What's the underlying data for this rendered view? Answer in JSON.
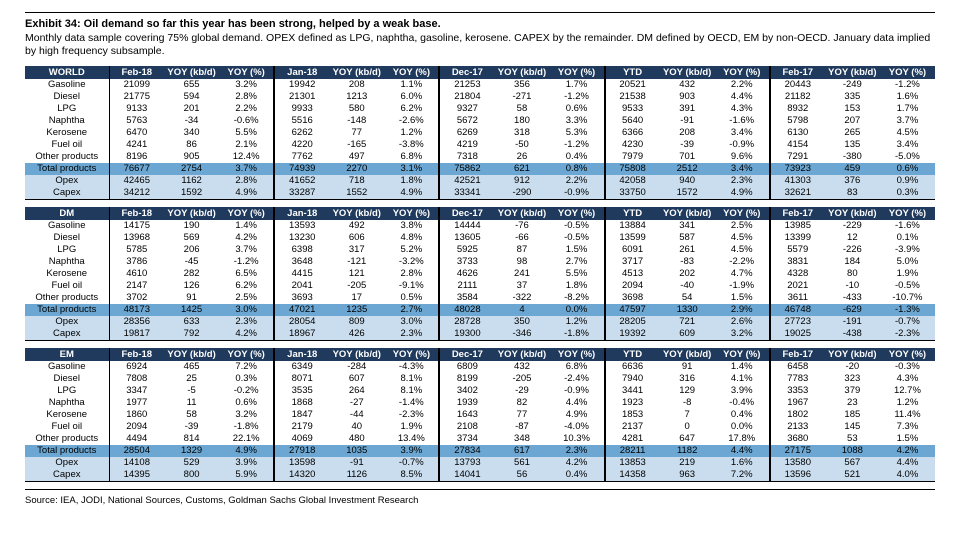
{
  "page": {
    "title": "Exhibit 34: Oil demand so far this year has been strong, helped by a weak base.",
    "subtitle": "Monthly data sample covering 75% global demand. OPEX defined as LPG, naphtha, gasoline, kerosene. CAPEX by the remainder. DM defined by OECD, EM by non-OECD. January data implied by high frequency subsample.",
    "source": "Source: IEA, JODI, National Sources, Customs, Goldman Sachs Global Investment Research"
  },
  "colors": {
    "header_bg": "#1f3a5c",
    "header_text": "#ffffff",
    "total_row_bg": "#6ba7d2",
    "subtotal_row_bg": "#c9ddee",
    "border": "#000000"
  },
  "columns": [
    "Feb-18",
    "YOY (kb/d)",
    "YOY (%)",
    "Jan-18",
    "YOY (kb/d)",
    "YOY (%)",
    "Dec-17",
    "YOY (kb/d)",
    "YOY (%)",
    "YTD",
    "YOY (kb/d)",
    "YOY (%)",
    "Feb-17",
    "YOY (kb/d)",
    "YOY (%)"
  ],
  "tables": [
    {
      "name": "WORLD",
      "rows": [
        {
          "label": "Gasoline",
          "type": "normal",
          "values": [
            "21099",
            "655",
            "3.2%",
            "19942",
            "208",
            "1.1%",
            "21253",
            "356",
            "1.7%",
            "20521",
            "432",
            "2.2%",
            "20443",
            "-249",
            "-1.2%"
          ]
        },
        {
          "label": "Diesel",
          "type": "normal",
          "values": [
            "21775",
            "594",
            "2.8%",
            "21301",
            "1213",
            "6.0%",
            "21804",
            "-271",
            "-1.2%",
            "21538",
            "903",
            "4.4%",
            "21182",
            "335",
            "1.6%"
          ]
        },
        {
          "label": "LPG",
          "type": "normal",
          "values": [
            "9133",
            "201",
            "2.2%",
            "9933",
            "580",
            "6.2%",
            "9327",
            "58",
            "0.6%",
            "9533",
            "391",
            "4.3%",
            "8932",
            "153",
            "1.7%"
          ]
        },
        {
          "label": "Naphtha",
          "type": "normal",
          "values": [
            "5763",
            "-34",
            "-0.6%",
            "5516",
            "-148",
            "-2.6%",
            "5672",
            "180",
            "3.3%",
            "5640",
            "-91",
            "-1.6%",
            "5798",
            "207",
            "3.7%"
          ]
        },
        {
          "label": "Kerosene",
          "type": "normal",
          "values": [
            "6470",
            "340",
            "5.5%",
            "6262",
            "77",
            "1.2%",
            "6269",
            "318",
            "5.3%",
            "6366",
            "208",
            "3.4%",
            "6130",
            "265",
            "4.5%"
          ]
        },
        {
          "label": "Fuel oil",
          "type": "normal",
          "values": [
            "4241",
            "86",
            "2.1%",
            "4220",
            "-165",
            "-3.8%",
            "4219",
            "-50",
            "-1.2%",
            "4230",
            "-39",
            "-0.9%",
            "4154",
            "135",
            "3.4%"
          ]
        },
        {
          "label": "Other products",
          "type": "normal",
          "values": [
            "8196",
            "905",
            "12.4%",
            "7762",
            "497",
            "6.8%",
            "7318",
            "26",
            "0.4%",
            "7979",
            "701",
            "9.6%",
            "7291",
            "-380",
            "-5.0%"
          ]
        },
        {
          "label": "Total products",
          "type": "total",
          "values": [
            "76677",
            "2754",
            "3.7%",
            "74939",
            "2270",
            "3.1%",
            "75862",
            "621",
            "0.8%",
            "75808",
            "2512",
            "3.4%",
            "73923",
            "459",
            "0.6%"
          ]
        },
        {
          "label": "Opex",
          "type": "subtotal",
          "values": [
            "42465",
            "1162",
            "2.8%",
            "41652",
            "718",
            "1.8%",
            "42521",
            "912",
            "2.2%",
            "42058",
            "940",
            "2.3%",
            "41303",
            "376",
            "0.9%"
          ]
        },
        {
          "label": "Capex",
          "type": "subtotal",
          "values": [
            "34212",
            "1592",
            "4.9%",
            "33287",
            "1552",
            "4.9%",
            "33341",
            "-290",
            "-0.9%",
            "33750",
            "1572",
            "4.9%",
            "32621",
            "83",
            "0.3%"
          ]
        }
      ]
    },
    {
      "name": "DM",
      "rows": [
        {
          "label": "Gasoline",
          "type": "normal",
          "values": [
            "14175",
            "190",
            "1.4%",
            "13593",
            "492",
            "3.8%",
            "14444",
            "-76",
            "-0.5%",
            "13884",
            "341",
            "2.5%",
            "13985",
            "-229",
            "-1.6%"
          ]
        },
        {
          "label": "Diesel",
          "type": "normal",
          "values": [
            "13968",
            "569",
            "4.2%",
            "13230",
            "606",
            "4.8%",
            "13605",
            "-66",
            "-0.5%",
            "13599",
            "587",
            "4.5%",
            "13399",
            "12",
            "0.1%"
          ]
        },
        {
          "label": "LPG",
          "type": "normal",
          "values": [
            "5785",
            "206",
            "3.7%",
            "6398",
            "317",
            "5.2%",
            "5925",
            "87",
            "1.5%",
            "6091",
            "261",
            "4.5%",
            "5579",
            "-226",
            "-3.9%"
          ]
        },
        {
          "label": "Naphtha",
          "type": "normal",
          "values": [
            "3786",
            "-45",
            "-1.2%",
            "3648",
            "-121",
            "-3.2%",
            "3733",
            "98",
            "2.7%",
            "3717",
            "-83",
            "-2.2%",
            "3831",
            "184",
            "5.0%"
          ]
        },
        {
          "label": "Kerosene",
          "type": "normal",
          "values": [
            "4610",
            "282",
            "6.5%",
            "4415",
            "121",
            "2.8%",
            "4626",
            "241",
            "5.5%",
            "4513",
            "202",
            "4.7%",
            "4328",
            "80",
            "1.9%"
          ]
        },
        {
          "label": "Fuel oil",
          "type": "normal",
          "values": [
            "2147",
            "126",
            "6.2%",
            "2041",
            "-205",
            "-9.1%",
            "2111",
            "37",
            "1.8%",
            "2094",
            "-40",
            "-1.9%",
            "2021",
            "-10",
            "-0.5%"
          ]
        },
        {
          "label": "Other products",
          "type": "normal",
          "values": [
            "3702",
            "91",
            "2.5%",
            "3693",
            "17",
            "0.5%",
            "3584",
            "-322",
            "-8.2%",
            "3698",
            "54",
            "1.5%",
            "3611",
            "-433",
            "-10.7%"
          ]
        },
        {
          "label": "Total products",
          "type": "total",
          "values": [
            "48173",
            "1425",
            "3.0%",
            "47021",
            "1235",
            "2.7%",
            "48028",
            "4",
            "0.0%",
            "47597",
            "1330",
            "2.9%",
            "46748",
            "-629",
            "-1.3%"
          ]
        },
        {
          "label": "Opex",
          "type": "subtotal",
          "values": [
            "28356",
            "633",
            "2.3%",
            "28054",
            "809",
            "3.0%",
            "28728",
            "350",
            "1.2%",
            "28205",
            "721",
            "2.6%",
            "27723",
            "-191",
            "-0.7%"
          ]
        },
        {
          "label": "Capex",
          "type": "subtotal",
          "values": [
            "19817",
            "792",
            "4.2%",
            "18967",
            "426",
            "2.3%",
            "19300",
            "-346",
            "-1.8%",
            "19392",
            "609",
            "3.2%",
            "19025",
            "-438",
            "-2.3%"
          ]
        }
      ]
    },
    {
      "name": "EM",
      "rows": [
        {
          "label": "Gasoline",
          "type": "normal",
          "values": [
            "6924",
            "465",
            "7.2%",
            "6349",
            "-284",
            "-4.3%",
            "6809",
            "432",
            "6.8%",
            "6636",
            "91",
            "1.4%",
            "6458",
            "-20",
            "-0.3%"
          ]
        },
        {
          "label": "Diesel",
          "type": "normal",
          "values": [
            "7808",
            "25",
            "0.3%",
            "8071",
            "607",
            "8.1%",
            "8199",
            "-205",
            "-2.4%",
            "7940",
            "316",
            "4.1%",
            "7783",
            "323",
            "4.3%"
          ]
        },
        {
          "label": "LPG",
          "type": "normal",
          "values": [
            "3347",
            "-5",
            "-0.2%",
            "3535",
            "264",
            "8.1%",
            "3402",
            "-29",
            "-0.9%",
            "3441",
            "129",
            "3.9%",
            "3353",
            "379",
            "12.7%"
          ]
        },
        {
          "label": "Naphtha",
          "type": "normal",
          "values": [
            "1977",
            "11",
            "0.6%",
            "1868",
            "-27",
            "-1.4%",
            "1939",
            "82",
            "4.4%",
            "1923",
            "-8",
            "-0.4%",
            "1967",
            "23",
            "1.2%"
          ]
        },
        {
          "label": "Kerosene",
          "type": "normal",
          "values": [
            "1860",
            "58",
            "3.2%",
            "1847",
            "-44",
            "-2.3%",
            "1643",
            "77",
            "4.9%",
            "1853",
            "7",
            "0.4%",
            "1802",
            "185",
            "11.4%"
          ]
        },
        {
          "label": "Fuel oil",
          "type": "normal",
          "values": [
            "2094",
            "-39",
            "-1.8%",
            "2179",
            "40",
            "1.9%",
            "2108",
            "-87",
            "-4.0%",
            "2137",
            "0",
            "0.0%",
            "2133",
            "145",
            "7.3%"
          ]
        },
        {
          "label": "Other products",
          "type": "normal",
          "values": [
            "4494",
            "814",
            "22.1%",
            "4069",
            "480",
            "13.4%",
            "3734",
            "348",
            "10.3%",
            "4281",
            "647",
            "17.8%",
            "3680",
            "53",
            "1.5%"
          ]
        },
        {
          "label": "Total products",
          "type": "total",
          "values": [
            "28504",
            "1329",
            "4.9%",
            "27918",
            "1035",
            "3.9%",
            "27834",
            "617",
            "2.3%",
            "28211",
            "1182",
            "4.4%",
            "27175",
            "1088",
            "4.2%"
          ]
        },
        {
          "label": "Opex",
          "type": "subtotal",
          "values": [
            "14108",
            "529",
            "3.9%",
            "13598",
            "-91",
            "-0.7%",
            "13793",
            "561",
            "4.2%",
            "13853",
            "219",
            "1.6%",
            "13580",
            "567",
            "4.4%"
          ]
        },
        {
          "label": "Capex",
          "type": "subtotal",
          "values": [
            "14395",
            "800",
            "5.9%",
            "14320",
            "1126",
            "8.5%",
            "14041",
            "56",
            "0.4%",
            "14358",
            "963",
            "7.2%",
            "13596",
            "521",
            "4.0%"
          ]
        }
      ]
    }
  ]
}
